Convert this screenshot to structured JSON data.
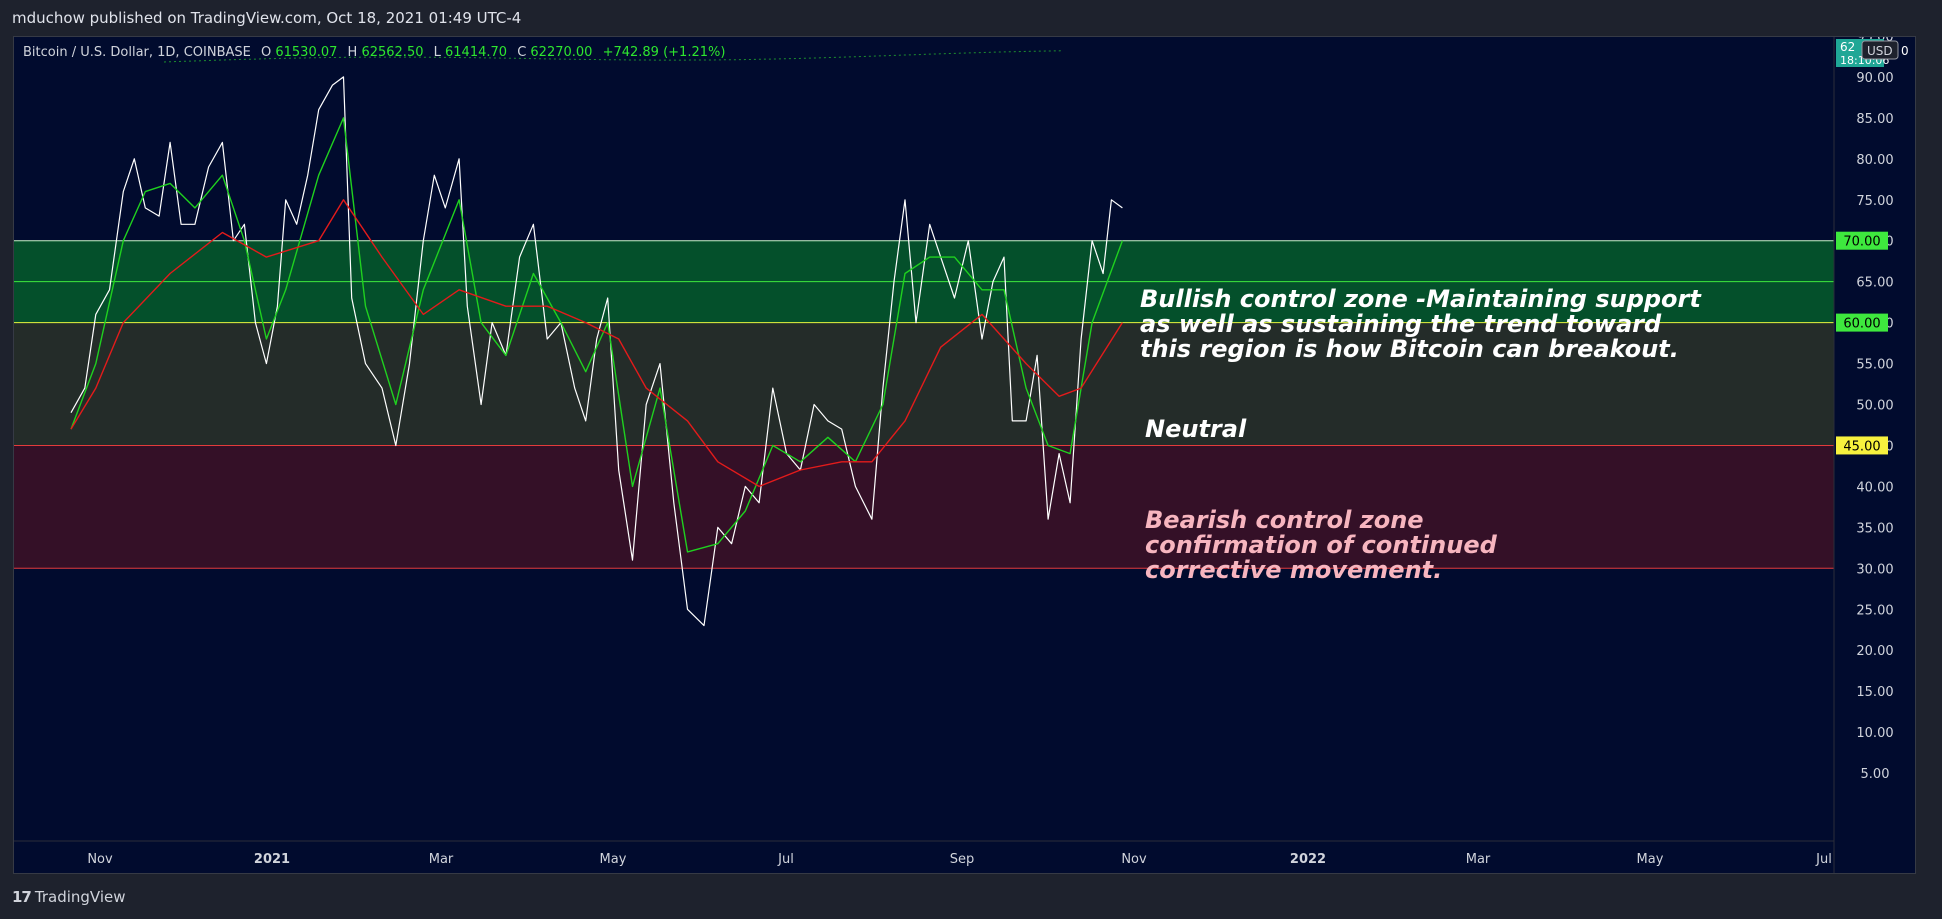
{
  "header": {
    "published": "mduchow published on TradingView.com, Oct 18, 2021 01:49 UTC-4"
  },
  "legend": {
    "symbol": "Bitcoin / U.S. Dollar, 1D, COINBASE",
    "open_label": "O",
    "open": "61530.07",
    "high_label": "H",
    "high": "62562.50",
    "low_label": "L",
    "low": "61414.70",
    "close_label": "C",
    "close": "62270.00",
    "change": "+742.89 (+1.21%)"
  },
  "price_axis": {
    "currency": "USD",
    "top_badge_line1": "62",
    "top_badge_line2": "18:10:06",
    "top_badge_suffix": "0"
  },
  "annotations": {
    "bullish": [
      "Bullish control zone -Maintaining support",
      "as well as sustaining the trend toward",
      "this region is how Bitcoin can breakout."
    ],
    "neutral": "Neutral",
    "bearish": [
      "Bearish control zone",
      "confirmation of continued",
      "corrective movement."
    ]
  },
  "footer": {
    "brand": "TradingView",
    "logo_glyph": "17"
  },
  "colors": {
    "background": "#010b2e",
    "rsi_line": "#ffffff",
    "fast_ma": "#1fd11f",
    "slow_ma": "#e31b1b",
    "bullish_zone": "#055d2a",
    "neutral_zone": "#2a3328",
    "bearish_zone": "#3d1226",
    "level_70": "#3ee83e",
    "level_60": "#3ee83e",
    "level_45": "#f7f13e",
    "level_text_dark": "#000000"
  },
  "chart_data": {
    "type": "line",
    "title": "Bitcoin / U.S. Dollar, 1D, COINBASE",
    "xlabel": "",
    "ylabel": "",
    "ylim": [
      0,
      97
    ],
    "x_ticks": [
      "Nov",
      "2021",
      "Mar",
      "May",
      "Jul",
      "Sep",
      "Nov",
      "2022",
      "Mar",
      "May",
      "Jul"
    ],
    "y_ticks": [
      "95.00",
      "90.00",
      "85.00",
      "80.00",
      "75.00",
      "70.00",
      "65.00",
      "60.00",
      "55.00",
      "50.00",
      "45.00",
      "40.00",
      "35.00",
      "30.00",
      "25.00",
      "20.00",
      "15.00",
      "10.00",
      "5.00"
    ],
    "levels": [
      {
        "value": 70,
        "label": "70.00"
      },
      {
        "value": 60,
        "label": "60.00"
      },
      {
        "value": 45,
        "label": "45.00"
      }
    ],
    "zones": [
      {
        "name": "bullish",
        "from": 60,
        "to": 70
      },
      {
        "name": "neutral",
        "from": 45,
        "to": 60
      },
      {
        "name": "bearish",
        "from": 30,
        "to": 45
      }
    ],
    "x_range": [
      "2020-10-01",
      "2022-07-01"
    ],
    "series": [
      {
        "key": "rsi",
        "points": [
          [
            "2020-10-01",
            49
          ],
          [
            "2020-10-06",
            52
          ],
          [
            "2020-10-10",
            61
          ],
          [
            "2020-10-15",
            64
          ],
          [
            "2020-10-20",
            76
          ],
          [
            "2020-10-24",
            80
          ],
          [
            "2020-10-28",
            74
          ],
          [
            "2020-11-02",
            73
          ],
          [
            "2020-11-06",
            82
          ],
          [
            "2020-11-10",
            72
          ],
          [
            "2020-11-15",
            72
          ],
          [
            "2020-11-20",
            79
          ],
          [
            "2020-11-25",
            82
          ],
          [
            "2020-11-29",
            70
          ],
          [
            "2020-12-03",
            72
          ],
          [
            "2020-12-07",
            60
          ],
          [
            "2020-12-11",
            55
          ],
          [
            "2020-12-15",
            62
          ],
          [
            "2020-12-18",
            75
          ],
          [
            "2020-12-22",
            72
          ],
          [
            "2020-12-26",
            78
          ],
          [
            "2020-12-30",
            86
          ],
          [
            "2021-01-04",
            89
          ],
          [
            "2021-01-08",
            90
          ],
          [
            "2021-01-11",
            63
          ],
          [
            "2021-01-16",
            55
          ],
          [
            "2021-01-22",
            52
          ],
          [
            "2021-01-27",
            45
          ],
          [
            "2021-02-01",
            55
          ],
          [
            "2021-02-06",
            70
          ],
          [
            "2021-02-10",
            78
          ],
          [
            "2021-02-14",
            74
          ],
          [
            "2021-02-19",
            80
          ],
          [
            "2021-02-22",
            62
          ],
          [
            "2021-02-27",
            50
          ],
          [
            "2021-03-03",
            60
          ],
          [
            "2021-03-08",
            56
          ],
          [
            "2021-03-13",
            68
          ],
          [
            "2021-03-18",
            72
          ],
          [
            "2021-03-23",
            58
          ],
          [
            "2021-03-28",
            60
          ],
          [
            "2021-04-02",
            52
          ],
          [
            "2021-04-06",
            48
          ],
          [
            "2021-04-10",
            58
          ],
          [
            "2021-04-14",
            63
          ],
          [
            "2021-04-18",
            42
          ],
          [
            "2021-04-23",
            31
          ],
          [
            "2021-04-28",
            50
          ],
          [
            "2021-05-03",
            55
          ],
          [
            "2021-05-08",
            38
          ],
          [
            "2021-05-13",
            25
          ],
          [
            "2021-05-19",
            23
          ],
          [
            "2021-05-24",
            35
          ],
          [
            "2021-05-29",
            33
          ],
          [
            "2021-06-03",
            40
          ],
          [
            "2021-06-08",
            38
          ],
          [
            "2021-06-13",
            52
          ],
          [
            "2021-06-18",
            44
          ],
          [
            "2021-06-23",
            42
          ],
          [
            "2021-06-28",
            50
          ],
          [
            "2021-07-03",
            48
          ],
          [
            "2021-07-08",
            47
          ],
          [
            "2021-07-13",
            40
          ],
          [
            "2021-07-19",
            36
          ],
          [
            "2021-07-23",
            52
          ],
          [
            "2021-07-27",
            65
          ],
          [
            "2021-07-31",
            75
          ],
          [
            "2021-08-04",
            60
          ],
          [
            "2021-08-09",
            72
          ],
          [
            "2021-08-13",
            68
          ],
          [
            "2021-08-18",
            63
          ],
          [
            "2021-08-23",
            70
          ],
          [
            "2021-08-28",
            58
          ],
          [
            "2021-09-01",
            65
          ],
          [
            "2021-09-05",
            68
          ],
          [
            "2021-09-08",
            48
          ],
          [
            "2021-09-13",
            48
          ],
          [
            "2021-09-17",
            56
          ],
          [
            "2021-09-21",
            36
          ],
          [
            "2021-09-25",
            44
          ],
          [
            "2021-09-29",
            38
          ],
          [
            "2021-10-03",
            58
          ],
          [
            "2021-10-07",
            70
          ],
          [
            "2021-10-11",
            66
          ],
          [
            "2021-10-14",
            75
          ],
          [
            "2021-10-18",
            74
          ]
        ]
      },
      {
        "key": "fast",
        "points": [
          [
            "2020-10-01",
            47
          ],
          [
            "2020-10-10",
            55
          ],
          [
            "2020-10-20",
            70
          ],
          [
            "2020-10-28",
            76
          ],
          [
            "2020-11-06",
            77
          ],
          [
            "2020-11-15",
            74
          ],
          [
            "2020-11-25",
            78
          ],
          [
            "2020-12-03",
            70
          ],
          [
            "2020-12-11",
            58
          ],
          [
            "2020-12-18",
            64
          ],
          [
            "2020-12-30",
            78
          ],
          [
            "2021-01-08",
            85
          ],
          [
            "2021-01-16",
            62
          ],
          [
            "2021-01-27",
            50
          ],
          [
            "2021-02-06",
            64
          ],
          [
            "2021-02-19",
            75
          ],
          [
            "2021-02-27",
            60
          ],
          [
            "2021-03-08",
            56
          ],
          [
            "2021-03-18",
            66
          ],
          [
            "2021-03-28",
            60
          ],
          [
            "2021-04-06",
            54
          ],
          [
            "2021-04-14",
            60
          ],
          [
            "2021-04-23",
            40
          ],
          [
            "2021-05-03",
            52
          ],
          [
            "2021-05-13",
            32
          ],
          [
            "2021-05-24",
            33
          ],
          [
            "2021-06-03",
            37
          ],
          [
            "2021-06-13",
            45
          ],
          [
            "2021-06-23",
            43
          ],
          [
            "2021-07-03",
            46
          ],
          [
            "2021-07-13",
            43
          ],
          [
            "2021-07-23",
            50
          ],
          [
            "2021-07-31",
            66
          ],
          [
            "2021-08-09",
            68
          ],
          [
            "2021-08-18",
            68
          ],
          [
            "2021-08-28",
            64
          ],
          [
            "2021-09-05",
            64
          ],
          [
            "2021-09-13",
            52
          ],
          [
            "2021-09-21",
            45
          ],
          [
            "2021-09-29",
            44
          ],
          [
            "2021-10-07",
            60
          ],
          [
            "2021-10-18",
            70
          ]
        ]
      },
      {
        "key": "slow",
        "points": [
          [
            "2020-10-01",
            47
          ],
          [
            "2020-10-10",
            52
          ],
          [
            "2020-10-20",
            60
          ],
          [
            "2020-11-06",
            66
          ],
          [
            "2020-11-25",
            71
          ],
          [
            "2020-12-11",
            68
          ],
          [
            "2020-12-30",
            70
          ],
          [
            "2021-01-08",
            75
          ],
          [
            "2021-01-22",
            68
          ],
          [
            "2021-02-06",
            61
          ],
          [
            "2021-02-19",
            64
          ],
          [
            "2021-03-08",
            62
          ],
          [
            "2021-03-23",
            62
          ],
          [
            "2021-04-06",
            60
          ],
          [
            "2021-04-18",
            58
          ],
          [
            "2021-04-28",
            52
          ],
          [
            "2021-05-13",
            48
          ],
          [
            "2021-05-24",
            43
          ],
          [
            "2021-06-08",
            40
          ],
          [
            "2021-06-23",
            42
          ],
          [
            "2021-07-08",
            43
          ],
          [
            "2021-07-19",
            43
          ],
          [
            "2021-07-31",
            48
          ],
          [
            "2021-08-13",
            57
          ],
          [
            "2021-08-28",
            61
          ],
          [
            "2021-09-13",
            55
          ],
          [
            "2021-09-25",
            51
          ],
          [
            "2021-10-03",
            52
          ],
          [
            "2021-10-18",
            60
          ]
        ]
      }
    ]
  }
}
